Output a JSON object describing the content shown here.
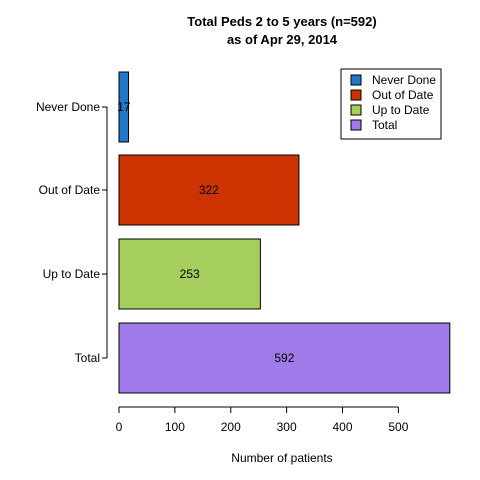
{
  "chart_data": {
    "type": "bar",
    "orientation": "horizontal",
    "title_line1": "Total Peds 2 to 5 years (n=592)",
    "title_line2": "as of Apr 29, 2014",
    "xlabel": "Number of patients",
    "ylabel": "",
    "xlim": [
      0,
      592
    ],
    "x_ticks": [
      "0",
      "100",
      "200",
      "300",
      "400",
      "500"
    ],
    "x_tick_values": [
      0,
      100,
      200,
      300,
      400,
      500
    ],
    "grid": false,
    "legend_position": "top-right",
    "categories": [
      "Never Done",
      "Out of Date",
      "Up to Date",
      "Total"
    ],
    "values": [
      17,
      322,
      253,
      592
    ],
    "value_labels": [
      "17",
      "322",
      "253",
      "592"
    ],
    "colors": [
      "#1f78c8",
      "#cc3300",
      "#a6ce5e",
      "#a07ae8"
    ],
    "legend": [
      "Never Done",
      "Out of Date",
      "Up to Date",
      "Total"
    ]
  }
}
